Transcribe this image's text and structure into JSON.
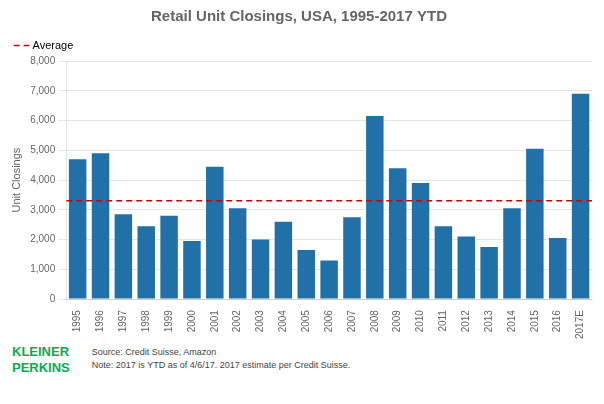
{
  "chart_data": {
    "type": "bar",
    "title": "Retail Unit Closings, USA, 1995-2017 YTD",
    "ylabel": "Unit Closings",
    "categories": [
      "1995",
      "1996",
      "1997",
      "1998",
      "1999",
      "2000",
      "2001",
      "2002",
      "2003",
      "2004",
      "2005",
      "2006",
      "2007",
      "2008",
      "2009",
      "2010",
      "2011",
      "2012",
      "2013",
      "2014",
      "2015",
      "2016",
      "2017E"
    ],
    "values": [
      4700,
      4900,
      2850,
      2450,
      2800,
      1950,
      4450,
      3050,
      2000,
      2600,
      1650,
      1300,
      2750,
      6150,
      4400,
      3900,
      2450,
      2100,
      1750,
      3050,
      5050,
      2050,
      6900
    ],
    "color": "#2171a8",
    "ylim": [
      0,
      8000
    ],
    "yticks": [
      0,
      {
        "value": 1000,
        "label": "1,000"
      },
      {
        "value": 2000,
        "label": "2,000"
      },
      {
        "value": 3000,
        "label": "3,000"
      },
      {
        "value": 4000,
        "label": "4,000"
      },
      {
        "value": 5000,
        "label": "5,000"
      },
      {
        "value": 6000,
        "label": "6,000"
      },
      {
        "value": 7000,
        "label": "7,000"
      },
      {
        "value": 8000,
        "label": "8,000"
      }
    ],
    "grid": true,
    "legend": "upper left",
    "lines": [
      {
        "y": 3300,
        "label": "Average",
        "color": "#cc0000",
        "line_style": "dashed"
      }
    ],
    "annotations": [
      {
        "text": "KLEINER",
        "color": "#00b050"
      },
      {
        "text": "PERKINS",
        "color": "#00b050"
      },
      {
        "text": "Source: Credit Suisse, Amazon"
      },
      {
        "text": "Note: 2017 is YTD as of 4/6/17. 2017 estimate per Credit Suisse."
      }
    ]
  }
}
